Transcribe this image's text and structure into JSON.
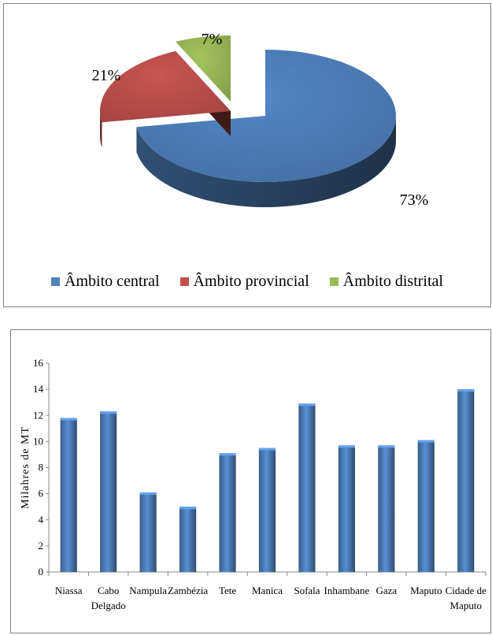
{
  "pie_chart": {
    "legend": [
      {
        "label": "Âmbito central",
        "color": "#4F81BD"
      },
      {
        "label": "Âmbito provincial",
        "color": "#C0504D"
      },
      {
        "label": "Âmbito distrital",
        "color": "#9BBB59"
      }
    ]
  },
  "chart_data": [
    {
      "type": "pie",
      "categories": [
        "Âmbito central",
        "Âmbito provincial",
        "Âmbito distrital"
      ],
      "values": [
        73,
        21,
        7
      ],
      "labels": [
        "73%",
        "21%",
        "7%"
      ],
      "colors": [
        "#4F81BD",
        "#C0504D",
        "#9BBB59"
      ],
      "style": "3d-exploded",
      "legend_position": "bottom"
    },
    {
      "type": "bar",
      "categories": [
        "Niassa",
        "Cabo Delgado",
        "Nampula",
        "Zambézia",
        "Tete",
        "Manica",
        "Sofala",
        "Inhambane",
        "Gaza",
        "Maputo",
        "Cidade de Maputo"
      ],
      "category_lines": [
        [
          "Niassa"
        ],
        [
          "Cabo",
          "Delgado"
        ],
        [
          "Nampula"
        ],
        [
          "Zambézia"
        ],
        [
          "Tete"
        ],
        [
          "Manica"
        ],
        [
          "Sofala"
        ],
        [
          "Inhambane"
        ],
        [
          "Gaza"
        ],
        [
          "Maputo"
        ],
        [
          "Cidade de",
          "Maputo"
        ]
      ],
      "values": [
        11.8,
        12.3,
        6.1,
        5.0,
        9.1,
        9.5,
        12.9,
        9.7,
        9.7,
        10.1,
        14.0
      ],
      "ylabel": "Milahres de MT",
      "ylim": [
        0,
        16
      ],
      "yticks": [
        0,
        2,
        4,
        6,
        8,
        10,
        12,
        14,
        16
      ],
      "grid": false,
      "color": "#4F81BD"
    }
  ]
}
